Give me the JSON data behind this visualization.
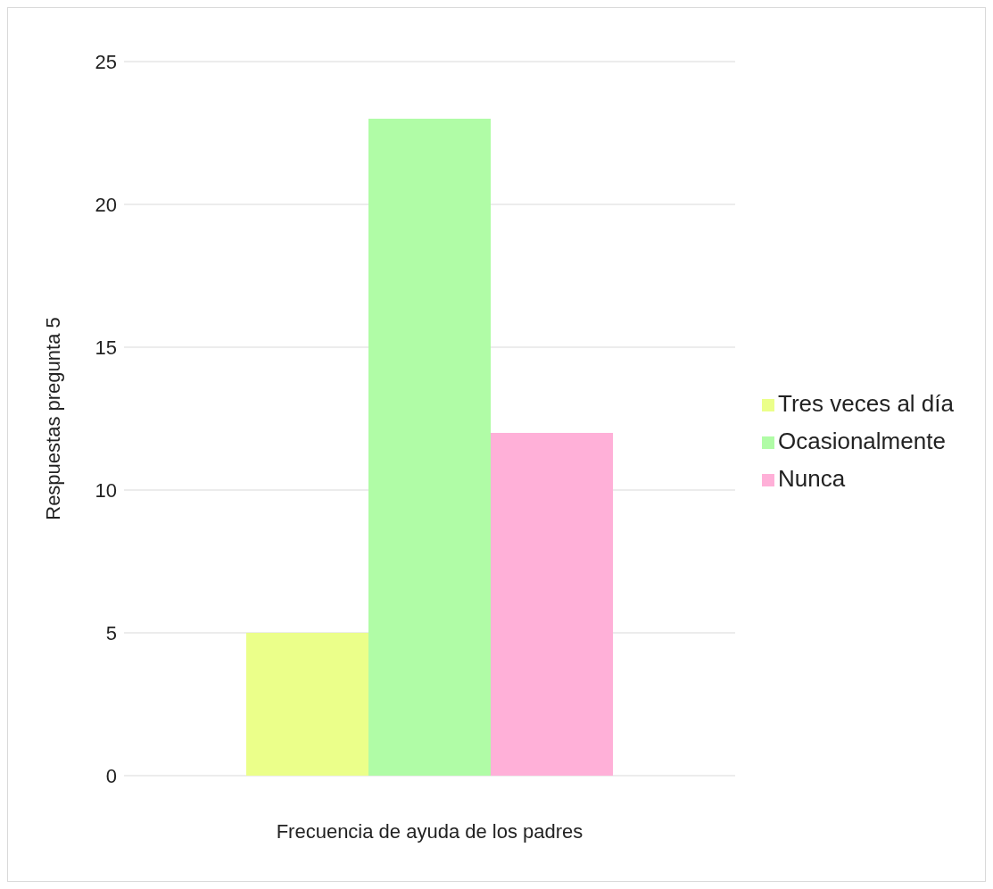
{
  "chart_data": {
    "type": "bar",
    "xlabel": "Frecuencia de ayuda de los padres",
    "ylabel": "Respuestas pregunta 5",
    "categories": [
      null
    ],
    "series": [
      {
        "name": "Tres veces al día",
        "color": "#ebff8a",
        "values": [
          5
        ]
      },
      {
        "name": "Ocasionalmente",
        "color": "#b0fca6",
        "values": [
          23
        ]
      },
      {
        "name": "Nunca",
        "color": "#ffb0d8",
        "values": [
          12
        ]
      }
    ],
    "ylim": [
      0,
      25
    ],
    "yticks": [
      0,
      5,
      10,
      15,
      20,
      25
    ],
    "grid": "y",
    "legend": "right"
  }
}
